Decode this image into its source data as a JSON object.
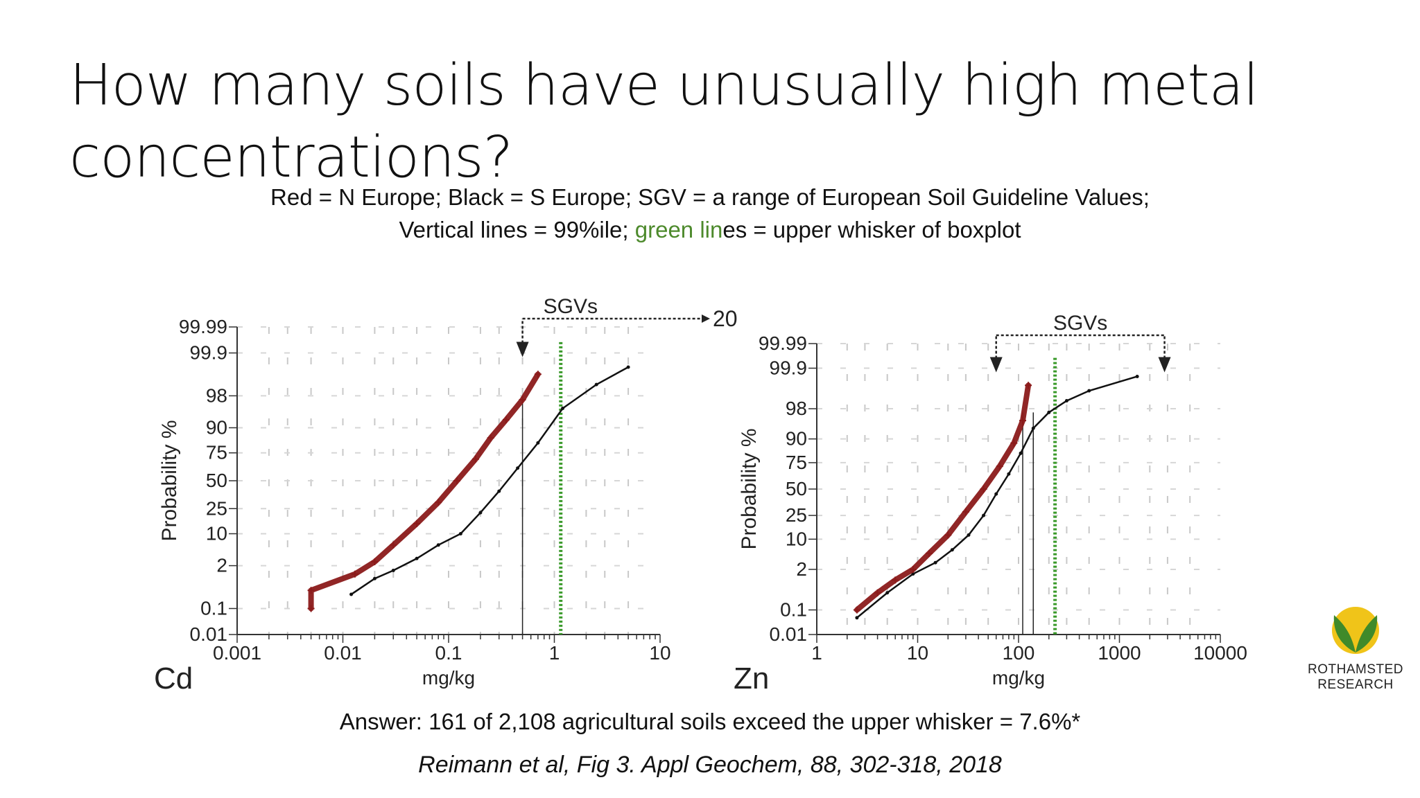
{
  "slide": {
    "title_line1": "How many soils have unusually high metal",
    "title_line2": "concentrations?",
    "subtitle_line1": "Red = N Europe; Black = S Europe; SGV = a range of European Soil Guideline Values;",
    "subtitle_line2_pre": "Vertical lines = 99%ile; ",
    "subtitle_line2_green": "green lin",
    "subtitle_line2_post": "es = upper whisker of boxplot",
    "answer": "Answer: 161 of 2,108 agricultural soils exceed the upper whisker = 7.6%*",
    "citation": "Reimann et al, Fig 3. Appl Geochem, 88, 302-318, 2018",
    "logo_line1": "ROTHAMSTED",
    "logo_line2": "RESEARCH"
  },
  "colors": {
    "north_europe": "#8b1a1a",
    "south_europe": "#111111",
    "whisker": "#3a9a2a",
    "logo_yellow": "#f0c419",
    "logo_green": "#3f8a2a"
  },
  "chart_data": [
    {
      "type": "scatter",
      "panel_label": "Cd",
      "xlabel": "mg/kg",
      "ylabel": "Probability %",
      "x_scale": "log",
      "xlim": [
        0.001,
        10
      ],
      "x_ticks": [
        "0.001",
        "0.01",
        "0.1",
        "1",
        "10"
      ],
      "y_scale": "probability",
      "y_ticks": [
        "0.01",
        "0.1",
        "2",
        "10",
        "25",
        "50",
        "75",
        "90",
        "98",
        "99.9",
        "99.99"
      ],
      "grid": true,
      "sgv_label": "SGVs",
      "sgv_range": [
        0.5,
        20
      ],
      "sgv_upper_text": "20",
      "percentile99_lines": [
        0.5
      ],
      "upper_whisker": 1.15,
      "series": [
        {
          "name": "Red = N Europe",
          "x": [
            0.005,
            0.005,
            0.013,
            0.02,
            0.03,
            0.05,
            0.08,
            0.12,
            0.18,
            0.25,
            0.35,
            0.5,
            0.7
          ],
          "y": [
            0.1,
            0.4,
            1.2,
            2.5,
            6,
            15,
            30,
            50,
            70,
            85,
            93,
            97.5,
            99.5
          ]
        },
        {
          "name": "Black = S Europe",
          "x": [
            0.012,
            0.02,
            0.03,
            0.05,
            0.08,
            0.13,
            0.2,
            0.3,
            0.45,
            0.7,
            1.2,
            2.5,
            5
          ],
          "y": [
            0.3,
            0.9,
            1.5,
            3,
            6,
            10,
            22,
            40,
            62,
            82,
            96,
            99,
            99.7
          ]
        }
      ]
    },
    {
      "type": "scatter",
      "panel_label": "Zn",
      "xlabel": "mg/kg",
      "ylabel": "Probability %",
      "x_scale": "log",
      "xlim": [
        1,
        10000
      ],
      "x_ticks": [
        "1",
        "10",
        "100",
        "1000",
        "10000"
      ],
      "y_scale": "probability",
      "y_ticks": [
        "0.01",
        "0.1",
        "2",
        "10",
        "25",
        "50",
        "75",
        "90",
        "98",
        "99.9",
        "99.99"
      ],
      "grid": true,
      "sgv_label": "SGVs",
      "sgv_range": [
        60,
        2800
      ],
      "percentile99_lines": [
        110,
        140
      ],
      "upper_whisker": 230,
      "series": [
        {
          "name": "Red = N Europe",
          "x": [
            2.5,
            4,
            6,
            9,
            13,
            20,
            30,
            45,
            65,
            90,
            110,
            125
          ],
          "y": [
            0.1,
            0.4,
            1,
            2,
            5,
            12,
            28,
            50,
            72,
            88,
            96,
            99.6
          ]
        },
        {
          "name": "Black = S Europe",
          "x": [
            2.5,
            5,
            9,
            15,
            22,
            32,
            45,
            60,
            80,
            105,
            140,
            200,
            300,
            500,
            1500
          ],
          "y": [
            0.05,
            0.4,
            1.5,
            3,
            6,
            12,
            25,
            45,
            65,
            82,
            94,
            97.5,
            98.8,
            99.4,
            99.8
          ]
        }
      ]
    }
  ]
}
